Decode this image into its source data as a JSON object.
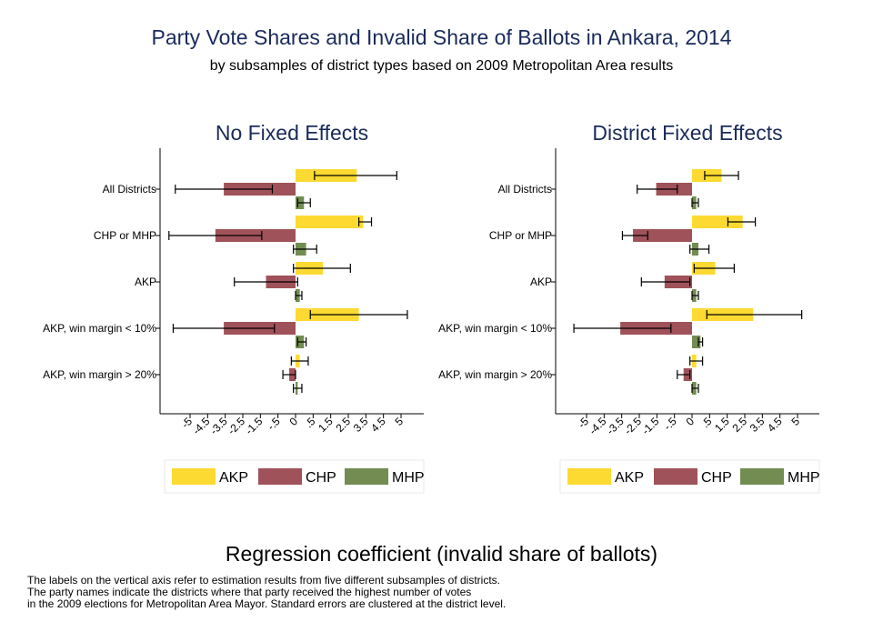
{
  "title": "Party Vote Shares and Invalid Share of Ballots in Ankara, 2014",
  "subtitle": "by subsamples of district types based on 2009 Metropolitan Area results",
  "x_axis_title": "Regression coefficient (invalid share of ballots)",
  "notes": [
    "The labels on the vertical axis refer to estimation results from five different subsamples of districts.",
    "The party names indicate the districts where that party received the highest number of votes",
    "in the 2009 elections for Metropolitan Area Mayor. Standard errors are clustered at the district level."
  ],
  "colors": {
    "AKP": "#fcda31",
    "CHP": "#a0525a",
    "MHP": "#738c52",
    "title": "#1a2b5a"
  },
  "chart_data": [
    {
      "type": "bar",
      "orientation": "horizontal",
      "title": "No Fixed Effects",
      "categories": [
        "All Districts",
        "CHP or MHP",
        "AKP",
        "AKP, win margin < 10%",
        "AKP, win margin > 20%"
      ],
      "xticks": [
        "-5",
        "-4.5",
        "-3.5",
        "-2.5",
        "-1.5",
        "-.5",
        "0",
        ".5",
        "1.5",
        "2.5",
        "3.5",
        "4.5",
        "5"
      ],
      "xlim": [
        -5,
        5
      ],
      "legend": [
        "AKP",
        "CHP",
        "MHP"
      ],
      "series": [
        {
          "name": "AKP",
          "values": [
            2.9,
            3.2,
            1.3,
            3.0,
            0.2
          ],
          "ci_low": [
            0.9,
            3.0,
            -0.1,
            0.7,
            -0.2
          ],
          "ci_high": [
            4.8,
            3.6,
            2.6,
            5.3,
            0.6
          ]
        },
        {
          "name": "CHP",
          "values": [
            -3.4,
            -3.8,
            -1.4,
            -3.4,
            -0.3
          ],
          "ci_low": [
            -5.7,
            -6.0,
            -2.9,
            -5.8,
            -0.6
          ],
          "ci_high": [
            -1.1,
            -1.6,
            0.1,
            -1.0,
            0.0
          ]
        },
        {
          "name": "MHP",
          "values": [
            0.4,
            0.5,
            0.2,
            0.4,
            0.1
          ],
          "ci_low": [
            0.1,
            -0.1,
            0.0,
            0.1,
            -0.1
          ],
          "ci_high": [
            0.7,
            1.0,
            0.3,
            0.5,
            0.3
          ]
        }
      ]
    },
    {
      "type": "bar",
      "orientation": "horizontal",
      "title": "District Fixed Effects",
      "categories": [
        "All Districts",
        "CHP or MHP",
        "AKP",
        "AKP, win margin < 10%",
        "AKP, win margin > 20%"
      ],
      "xticks": [
        "-5",
        "-4.5",
        "-3.5",
        "-2.5",
        "-1.5",
        "-.5",
        "0",
        ".5",
        "1.5",
        "2.5",
        "3.5",
        "4.5",
        "5"
      ],
      "xlim": [
        -5,
        5
      ],
      "legend": [
        "AKP",
        "CHP",
        "MHP"
      ],
      "series": [
        {
          "name": "AKP",
          "values": [
            1.4,
            2.4,
            1.1,
            2.9,
            0.2
          ],
          "ci_low": [
            0.6,
            1.7,
            0.1,
            0.7,
            -0.1
          ],
          "ci_high": [
            2.2,
            3.0,
            2.0,
            5.2,
            0.5
          ]
        },
        {
          "name": "CHP",
          "values": [
            -1.7,
            -2.8,
            -1.3,
            -3.4,
            -0.4
          ],
          "ci_low": [
            -2.6,
            -3.3,
            -2.4,
            -5.6,
            -0.7
          ],
          "ci_high": [
            -0.7,
            -2.1,
            -0.1,
            -1.0,
            -0.1
          ]
        },
        {
          "name": "MHP",
          "values": [
            0.2,
            0.3,
            0.2,
            0.4,
            0.2
          ],
          "ci_low": [
            0.0,
            -0.1,
            0.0,
            0.3,
            0.0
          ],
          "ci_high": [
            0.3,
            0.8,
            0.3,
            0.5,
            0.3
          ]
        }
      ]
    }
  ]
}
